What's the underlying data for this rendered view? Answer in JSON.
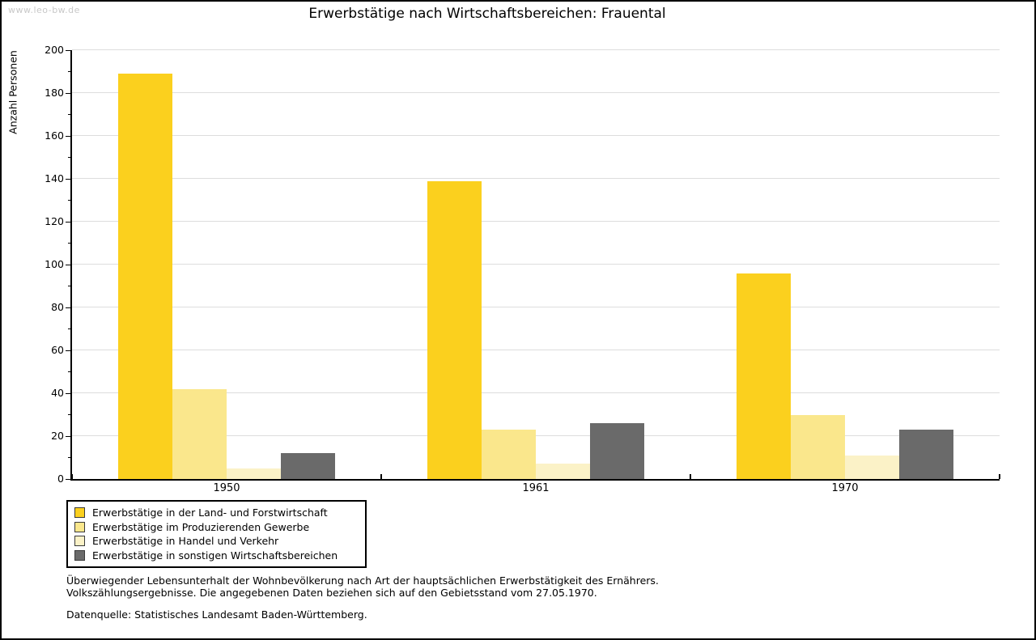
{
  "watermark": "www.leo-bw.de",
  "title": "Erwerbstätige nach Wirtschaftsbereichen: Frauental",
  "chart_data": {
    "type": "bar",
    "title": "Erwerbstätige nach Wirtschaftsbereichen: Frauental",
    "xlabel": "",
    "ylabel": "Anzahl Personen",
    "ylim": [
      0,
      200
    ],
    "ytick_step": 20,
    "yminor_step": 10,
    "grid": true,
    "legend_position": "bottom-left",
    "categories": [
      "1950",
      "1961",
      "1970"
    ],
    "series": [
      {
        "name": "Erwerbstätige in der Land- und Forstwirtschaft",
        "color": "#FBD01E",
        "values": [
          189,
          139,
          96
        ]
      },
      {
        "name": "Erwerbstätige im Produzierenden Gewerbe",
        "color": "#FAE78C",
        "values": [
          42,
          23,
          30
        ]
      },
      {
        "name": "Erwerbstätige in Handel und Verkehr",
        "color": "#FBF2C7",
        "values": [
          5,
          7,
          11
        ]
      },
      {
        "name": "Erwerbstätige in sonstigen Wirtschaftsbereichen",
        "color": "#6A6A6A",
        "values": [
          12,
          26,
          23
        ]
      }
    ],
    "colors": {
      "gridline": "#dddddd",
      "axis": "#000000",
      "watermark_text": "#c8c8c8"
    }
  },
  "notes": {
    "line1": "Überwiegender Lebensunterhalt der Wohnbevölkerung nach Art der hauptsächlichen Erwerbstätigkeit des Ernährers.",
    "line2": "Volkszählungsergebnisse. Die angegebenen Daten beziehen sich auf den Gebietsstand vom 27.05.1970.",
    "source": "Datenquelle: Statistisches Landesamt Baden-Württemberg."
  }
}
